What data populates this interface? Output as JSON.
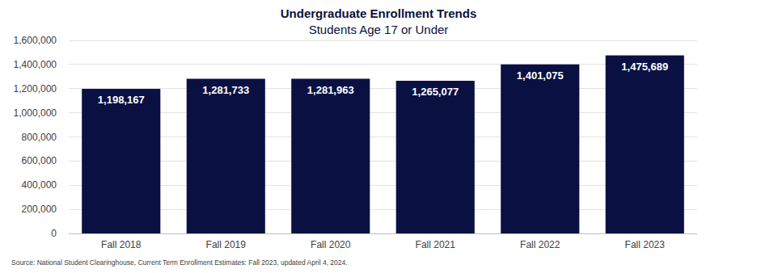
{
  "chart_data": {
    "type": "bar",
    "title": "Undergraduate Enrollment Trends",
    "subtitle": "Students Age 17 or Under",
    "categories": [
      "Fall 2018",
      "Fall 2019",
      "Fall 2020",
      "Fall 2021",
      "Fall 2022",
      "Fall 2023"
    ],
    "values": [
      1198167,
      1281733,
      1281963,
      1265077,
      1401075,
      1475689
    ],
    "value_labels": [
      "1,198,167",
      "1,281,733",
      "1,281,963",
      "1,265,077",
      "1,401,075",
      "1,475,689"
    ],
    "color": "#0a1142",
    "ylim": [
      0,
      1600000
    ],
    "yticks": [
      0,
      {
        "value": 200000,
        "label": "200,000"
      },
      {
        "value": 400000,
        "label": "400,000"
      },
      {
        "value": 600000,
        "label": "600,000"
      },
      {
        "value": 800000,
        "label": "800,000"
      },
      {
        "value": 1000000,
        "label": "1,000,000"
      },
      {
        "value": 1200000,
        "label": "1,200,000"
      },
      {
        "value": 1400000,
        "label": "1,400,000"
      },
      {
        "value": 1600000,
        "label": "1,600,000"
      }
    ],
    "grid": true,
    "data_labels": true,
    "annotations": [
      "Source: National Student Clearinghouse, Current Term Enrollment Estimates: Fall 2023, updated April 4, 2024."
    ]
  }
}
